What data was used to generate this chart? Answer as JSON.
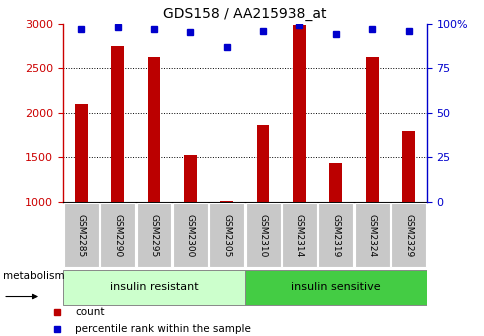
{
  "title": "GDS158 / AA215938_at",
  "categories": [
    "GSM2285",
    "GSM2290",
    "GSM2295",
    "GSM2300",
    "GSM2305",
    "GSM2310",
    "GSM2314",
    "GSM2319",
    "GSM2324",
    "GSM2329"
  ],
  "counts": [
    2100,
    2750,
    2620,
    1520,
    1010,
    1860,
    2980,
    1430,
    2620,
    1790
  ],
  "percentiles": [
    97,
    98,
    97,
    95,
    87,
    96,
    99,
    94,
    97,
    96
  ],
  "ylim_left": [
    1000,
    3000
  ],
  "ylim_right": [
    0,
    100
  ],
  "yticks_left": [
    1000,
    1500,
    2000,
    2500,
    3000
  ],
  "yticks_right": [
    0,
    25,
    50,
    75,
    100
  ],
  "bar_color": "#bb0000",
  "dot_color": "#0000cc",
  "bar_width": 0.35,
  "group1_label": "insulin resistant",
  "group2_label": "insulin sensitive",
  "group1_indices": [
    0,
    1,
    2,
    3,
    4
  ],
  "group2_indices": [
    5,
    6,
    7,
    8,
    9
  ],
  "group1_color": "#ccffcc",
  "group2_color": "#44cc44",
  "metabolism_label": "metabolism",
  "legend_count_label": "count",
  "legend_pct_label": "percentile rank within the sample",
  "tick_bg_color": "#c8c8c8",
  "left_axis_color": "#cc0000",
  "right_axis_color": "#0000cc"
}
